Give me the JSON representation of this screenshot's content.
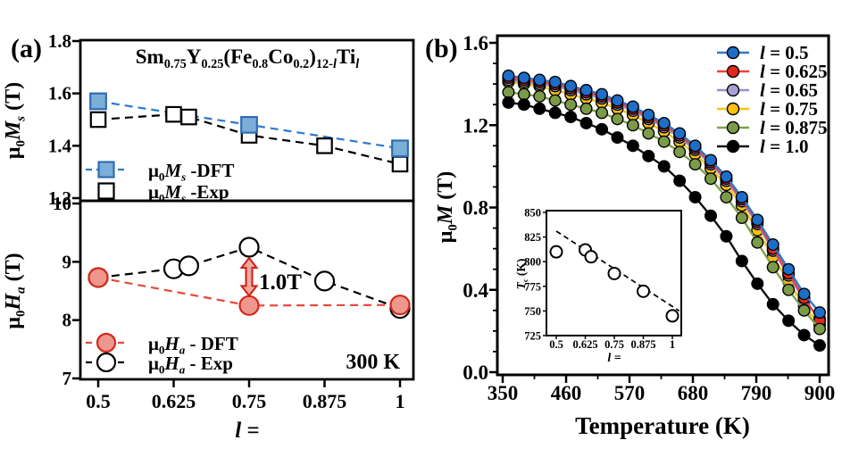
{
  "figure": {
    "panel_a_label": "(a)",
    "panel_b_label": "(b)",
    "background": "#ffffff"
  },
  "colors": {
    "dft_ms_fill": "#7cafd8",
    "dft_ms_edge": "#2d6db5",
    "dft_ms_line": "#2e79cc",
    "dft_ha_fill": "#ee978f",
    "dft_ha_edge": "#d5281a",
    "dft_ha_line": "#e8473c",
    "exp_line": "#000000",
    "annotation_red": "#cc1f14",
    "b_blue": "#1e6ec8",
    "b_red": "#e3261c",
    "b_purple": "#a89fd4",
    "b_yellow": "#fdc00d",
    "b_green": "#7c9b49",
    "b_black": "#000000"
  },
  "chart_data": [
    {
      "id": "a_top",
      "type": "line",
      "title": "Sm0.75Y0.25(Fe0.8Co0.2)12-lTil",
      "title_rich": [
        {
          "t": "Sm"
        },
        {
          "t": "0.75",
          "sub": true
        },
        {
          "t": "Y"
        },
        {
          "t": "0.25",
          "sub": true
        },
        {
          "t": "(Fe"
        },
        {
          "t": "0.8",
          "sub": true
        },
        {
          "t": "Co"
        },
        {
          "t": "0.2",
          "sub": true
        },
        {
          "t": ")"
        },
        {
          "t": "12-",
          "sub": true
        },
        {
          "t": "l",
          "sub": true,
          "it": true
        },
        {
          "t": "Ti"
        },
        {
          "t": "l",
          "sub": true,
          "it": true
        }
      ],
      "ylabel": "μ0Ms (T)",
      "ylabel_rich": [
        {
          "t": "μ"
        },
        {
          "t": "0",
          "sub": true
        },
        {
          "t": "M",
          "it": true
        },
        {
          "t": "s",
          "sub": true,
          "it": true
        },
        {
          "t": " (T)"
        }
      ],
      "ylim": [
        1.2,
        1.8
      ],
      "xlim": [
        0.47,
        1.022
      ],
      "grid": false,
      "legend_position": "lower-left",
      "y_tick_values": [
        1.8,
        1.6,
        1.4,
        1.2
      ],
      "y_tick_labels": [
        "1.8",
        "1.6",
        "1.4",
        "1.2"
      ],
      "series": [
        {
          "name": "μ0Ms -DFT",
          "label_rich": [
            {
              "t": "μ"
            },
            {
              "t": "0",
              "sub": true
            },
            {
              "t": "M",
              "it": true
            },
            {
              "t": "s",
              "sub": true,
              "it": true
            },
            {
              "t": " -DFT"
            }
          ],
          "x": [
            0.5,
            0.75,
            1.0
          ],
          "values": [
            1.57,
            1.48,
            1.39
          ],
          "marker": "square",
          "marker_fill": "#7cafd8",
          "marker_edge": "#2d6db5",
          "line_color": "#2e79cc",
          "line_style": "dashed"
        },
        {
          "name": "μ0Ms -Exp",
          "label_rich": [
            {
              "t": "μ"
            },
            {
              "t": "0",
              "sub": true
            },
            {
              "t": "M",
              "it": true
            },
            {
              "t": "s",
              "sub": true,
              "it": true
            },
            {
              "t": " -Exp"
            }
          ],
          "x": [
            0.5,
            0.625,
            0.65,
            0.75,
            0.875,
            1.0
          ],
          "values": [
            1.5,
            1.52,
            1.51,
            1.44,
            1.4,
            1.33
          ],
          "marker": "square",
          "marker_fill": "#ffffff",
          "marker_edge": "#000000",
          "line_color": "#000000",
          "line_style": "dashed"
        }
      ]
    },
    {
      "id": "a_bottom",
      "type": "line",
      "ylabel": "μ0Ha (T)",
      "ylabel_rich": [
        {
          "t": "μ"
        },
        {
          "t": "0",
          "sub": true
        },
        {
          "t": "H",
          "it": true
        },
        {
          "t": "a",
          "sub": true,
          "it": true
        },
        {
          "t": " (T)"
        }
      ],
      "xlabel": "l =",
      "xlabel_rich": [
        {
          "t": "l",
          "it": true
        },
        {
          "t": " ="
        }
      ],
      "ylim": [
        7,
        10
      ],
      "xlim": [
        0.47,
        1.022
      ],
      "grid": false,
      "legend_position": "lower-left",
      "y_tick_values": [
        10,
        9,
        8,
        7
      ],
      "y_tick_labels": [
        "10",
        "9",
        "8",
        "7"
      ],
      "x_tick_values": [
        0.5,
        0.625,
        0.75,
        0.875,
        1
      ],
      "x_tick_labels": [
        "0.5",
        "0.625",
        "0.75",
        "0.875",
        "1"
      ],
      "corner_text": "300 K",
      "annotation": {
        "text": "1.0T",
        "color": "#cc1f14",
        "x": 0.75,
        "from": 9.25,
        "to": 8.25
      },
      "series": [
        {
          "name": "μ0Ha - Exp",
          "label_rich": [
            {
              "t": "μ"
            },
            {
              "t": "0",
              "sub": true
            },
            {
              "t": "H",
              "it": true
            },
            {
              "t": "a",
              "sub": true,
              "it": true
            },
            {
              "t": " - Exp"
            }
          ],
          "x": [
            0.5,
            0.625,
            0.65,
            0.75,
            0.875,
            1.0
          ],
          "values": [
            8.73,
            8.88,
            8.93,
            9.25,
            8.67,
            8.2
          ],
          "marker": "circle",
          "marker_fill": "#ffffff",
          "marker_edge": "#000000",
          "line_color": "#000000",
          "line_style": "dashed"
        },
        {
          "name": "μ0Ha - DFT",
          "label_rich": [
            {
              "t": "μ"
            },
            {
              "t": "0",
              "sub": true
            },
            {
              "t": "H",
              "it": true
            },
            {
              "t": "a",
              "sub": true,
              "it": true
            },
            {
              "t": " - DFT"
            }
          ],
          "x": [
            0.5,
            0.75,
            1.0
          ],
          "values": [
            8.73,
            8.25,
            8.26
          ],
          "marker": "circle",
          "marker_fill": "#ee978f",
          "marker_edge": "#d5281a",
          "line_color": "#e8473c",
          "line_style": "dashed"
        }
      ],
      "legend_order": [
        "μ0Ha - DFT",
        "μ0Ha - Exp"
      ]
    },
    {
      "id": "b_main",
      "type": "line",
      "xlabel": "Temperature (K)",
      "ylabel": "μ0M (T)",
      "ylabel_rich": [
        {
          "t": "μ"
        },
        {
          "t": "0",
          "sub": true
        },
        {
          "t": "M",
          "it": true
        },
        {
          "t": " (T)"
        }
      ],
      "xlim": [
        341,
        915
      ],
      "ylim": [
        0.0,
        1.6
      ],
      "grid": false,
      "legend_position": "upper-right",
      "x_tick_values": [
        350,
        460,
        570,
        680,
        790,
        900
      ],
      "x_tick_labels": [
        "350",
        "460",
        "570",
        "680",
        "790",
        "900"
      ],
      "x_minor_ticks": [
        405,
        515,
        625,
        735,
        845
      ],
      "y_tick_values": [
        0.0,
        0.4,
        0.8,
        1.2,
        1.6
      ],
      "y_tick_labels": [
        "0.0",
        "0.4",
        "0.8",
        "1.2",
        "1.6"
      ],
      "y_minor_ticks": [
        0.1,
        0.2,
        0.3,
        0.5,
        0.6,
        0.7,
        0.9,
        1.0,
        1.1,
        1.3,
        1.4,
        1.5
      ],
      "x": [
        360,
        387,
        414,
        441,
        468,
        495,
        522,
        549,
        576,
        603,
        630,
        657,
        684,
        711,
        738,
        765,
        792,
        819,
        846,
        873,
        900
      ],
      "series": [
        {
          "name": "l = 0.75",
          "label_rich": [
            {
              "t": "l",
              "it": true
            },
            {
              "t": " = 0.75"
            }
          ],
          "values": [
            1.41,
            1.4,
            1.39,
            1.37,
            1.35,
            1.33,
            1.31,
            1.28,
            1.25,
            1.21,
            1.17,
            1.12,
            1.06,
            0.99,
            0.91,
            0.81,
            0.69,
            0.56,
            0.44,
            0.32,
            0.23
          ],
          "marker": "circle",
          "marker_fill": "#fdc00d",
          "marker_edge": "#000000",
          "line_color": "#f7c413",
          "line_style": "solid",
          "legend_row": 3
        },
        {
          "name": "l = 0.65",
          "label_rich": [
            {
              "t": "l",
              "it": true
            },
            {
              "t": " = 0.65"
            }
          ],
          "values": [
            1.42,
            1.41,
            1.4,
            1.39,
            1.37,
            1.35,
            1.33,
            1.3,
            1.27,
            1.23,
            1.19,
            1.14,
            1.08,
            1.01,
            0.93,
            0.83,
            0.72,
            0.59,
            0.47,
            0.35,
            0.26
          ],
          "marker": "circle",
          "marker_fill": "#a89fd4",
          "marker_edge": "#000000",
          "line_color": "#998fcb",
          "line_style": "solid",
          "legend_row": 2
        },
        {
          "name": "l = 0.625",
          "label_rich": [
            {
              "t": "l",
              "it": true
            },
            {
              "t": " = 0.625"
            }
          ],
          "values": [
            1.43,
            1.42,
            1.41,
            1.4,
            1.38,
            1.36,
            1.34,
            1.31,
            1.28,
            1.24,
            1.2,
            1.15,
            1.09,
            1.02,
            0.94,
            0.84,
            0.73,
            0.6,
            0.48,
            0.36,
            0.25
          ],
          "marker": "circle",
          "marker_fill": "#e3261c",
          "marker_edge": "#000000",
          "line_color": "#ef4135",
          "line_style": "solid",
          "legend_row": 1
        },
        {
          "name": "l = 0.5",
          "label_rich": [
            {
              "t": "l",
              "it": true
            },
            {
              "t": " = 0.5"
            }
          ],
          "values": [
            1.44,
            1.43,
            1.42,
            1.41,
            1.39,
            1.37,
            1.35,
            1.32,
            1.29,
            1.25,
            1.21,
            1.16,
            1.1,
            1.03,
            0.95,
            0.85,
            0.74,
            0.62,
            0.5,
            0.38,
            0.29
          ],
          "marker": "circle",
          "marker_fill": "#1e6ec8",
          "marker_edge": "#000000",
          "line_color": "#2e79cc",
          "line_style": "solid",
          "legend_row": 0
        },
        {
          "name": "l = 0.875",
          "label_rich": [
            {
              "t": "l",
              "it": true
            },
            {
              "t": " = 0.875"
            }
          ],
          "values": [
            1.36,
            1.35,
            1.34,
            1.32,
            1.3,
            1.28,
            1.26,
            1.23,
            1.2,
            1.16,
            1.12,
            1.07,
            1.01,
            0.94,
            0.85,
            0.75,
            0.63,
            0.51,
            0.4,
            0.3,
            0.21
          ],
          "marker": "circle",
          "marker_fill": "#7c9b49",
          "marker_edge": "#000000",
          "line_color": "#82a14e",
          "line_style": "solid",
          "legend_row": 4
        },
        {
          "name": "l = 1.0",
          "label_rich": [
            {
              "t": "l",
              "it": true
            },
            {
              "t": " = 1.0"
            }
          ],
          "values": [
            1.31,
            1.3,
            1.28,
            1.26,
            1.24,
            1.21,
            1.18,
            1.14,
            1.1,
            1.05,
            1.0,
            0.93,
            0.85,
            0.76,
            0.66,
            0.54,
            0.43,
            0.33,
            0.25,
            0.18,
            0.13
          ],
          "marker": "circle",
          "marker_fill": "#000000",
          "marker_edge": "#000000",
          "line_color": "#111111",
          "line_style": "solid",
          "legend_row": 5
        }
      ]
    },
    {
      "id": "b_inset",
      "type": "scatter",
      "xlabel": "l =",
      "xlabel_rich": [
        {
          "t": "l",
          "it": true
        },
        {
          "t": " ="
        }
      ],
      "ylabel": "Tc (K)",
      "ylabel_rich": [
        {
          "t": "T",
          "it": true
        },
        {
          "t": "c",
          "sub": true
        },
        {
          "t": " (K)"
        }
      ],
      "xlim": [
        0.458,
        1.039
      ],
      "ylim": [
        725,
        850
      ],
      "grid": false,
      "y_tick_values": [
        850,
        825,
        800,
        775,
        750,
        725
      ],
      "y_tick_labels": [
        "850",
        "825",
        "800",
        "775",
        "750",
        "725"
      ],
      "x_tick_values": [
        0.5,
        0.625,
        0.75,
        0.875,
        1
      ],
      "x_tick_labels": [
        "0.5",
        "0.625",
        "0.75",
        "0.875",
        "1"
      ],
      "series": [
        {
          "name": "Tc",
          "x": [
            0.5,
            0.625,
            0.65,
            0.75,
            0.875,
            1.0
          ],
          "values": [
            810,
            812,
            805,
            788,
            770,
            745
          ],
          "marker": "circle",
          "marker_fill": "#ffffff",
          "marker_edge": "#000000",
          "line_style": "none"
        }
      ],
      "trend_line": {
        "x": [
          0.5,
          1.03
        ],
        "values": [
          831,
          750
        ],
        "style": "dashed",
        "color": "#000000"
      }
    }
  ]
}
